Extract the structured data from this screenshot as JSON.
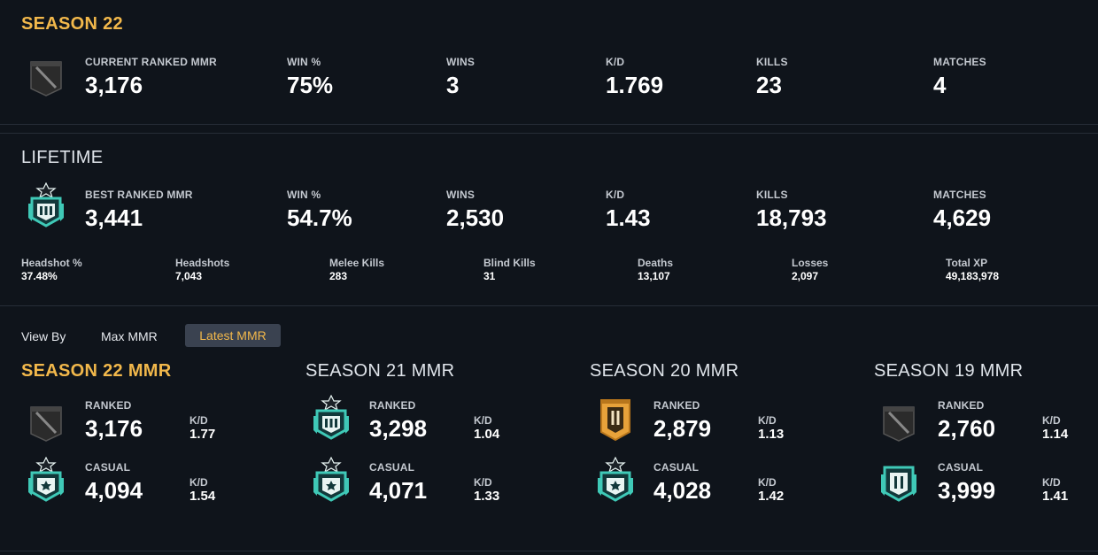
{
  "season": {
    "title": "SEASON 22",
    "stats": [
      {
        "label": "CURRENT RANKED MMR",
        "value": "3,176"
      },
      {
        "label": "WIN %",
        "value": "75%"
      },
      {
        "label": "WINS",
        "value": "3"
      },
      {
        "label": "K/D",
        "value": "1.769"
      },
      {
        "label": "KILLS",
        "value": "23"
      },
      {
        "label": "MATCHES",
        "value": "4"
      }
    ]
  },
  "lifetime": {
    "title": "LIFETIME",
    "stats": [
      {
        "label": "BEST RANKED MMR",
        "value": "3,441"
      },
      {
        "label": "WIN %",
        "value": "54.7%"
      },
      {
        "label": "WINS",
        "value": "2,530"
      },
      {
        "label": "K/D",
        "value": "1.43"
      },
      {
        "label": "KILLS",
        "value": "18,793"
      },
      {
        "label": "MATCHES",
        "value": "4,629"
      }
    ],
    "small": [
      {
        "label": "Headshot %",
        "value": "37.48%"
      },
      {
        "label": "Headshots",
        "value": "7,043"
      },
      {
        "label": "Melee Kills",
        "value": "283"
      },
      {
        "label": "Blind Kills",
        "value": "31"
      },
      {
        "label": "Deaths",
        "value": "13,107"
      },
      {
        "label": "Losses",
        "value": "2,097"
      },
      {
        "label": "Total XP",
        "value": "49,183,978"
      }
    ]
  },
  "view_by": {
    "label": "View By",
    "options": [
      "Max MMR",
      "Latest MMR"
    ],
    "selected": "Latest MMR"
  },
  "mmr_seasons": [
    {
      "title": "SEASON 22 MMR",
      "ranked_label": "RANKED",
      "ranked": "3,176",
      "ranked_kd_label": "K/D",
      "ranked_kd": "1.77",
      "casual_label": "CASUAL",
      "casual": "4,094",
      "casual_kd_label": "K/D",
      "casual_kd": "1.54",
      "ranked_icon": "unranked-banner-icon",
      "casual_icon": "champion-star-icon"
    },
    {
      "title": "SEASON 21 MMR",
      "ranked_label": "RANKED",
      "ranked": "3,298",
      "ranked_kd_label": "K/D",
      "ranked_kd": "1.04",
      "casual_label": "CASUAL",
      "casual": "4,071",
      "casual_kd_label": "K/D",
      "casual_kd": "1.33",
      "ranked_icon": "diamond-rank-icon",
      "casual_icon": "champion-star-icon"
    },
    {
      "title": "SEASON 20 MMR",
      "ranked_label": "RANKED",
      "ranked": "2,879",
      "ranked_kd_label": "K/D",
      "ranked_kd": "1.13",
      "casual_label": "CASUAL",
      "casual": "4,028",
      "casual_kd_label": "K/D",
      "casual_kd": "1.42",
      "ranked_icon": "gold-rank-icon",
      "casual_icon": "champion-star-icon"
    },
    {
      "title": "SEASON 19 MMR",
      "ranked_label": "RANKED",
      "ranked": "2,760",
      "ranked_kd_label": "K/D",
      "ranked_kd": "1.14",
      "casual_label": "CASUAL",
      "casual": "3,999",
      "casual_kd_label": "K/D",
      "casual_kd": "1.41",
      "ranked_icon": "unranked-banner-icon",
      "casual_icon": "diamond-rank-icon"
    }
  ],
  "colors": {
    "accent": "#f2b84b",
    "background": "#0f141b",
    "teal": "#3fc9b7",
    "gold_rank": "#e8a23a",
    "unranked": "#3a3a3a"
  }
}
